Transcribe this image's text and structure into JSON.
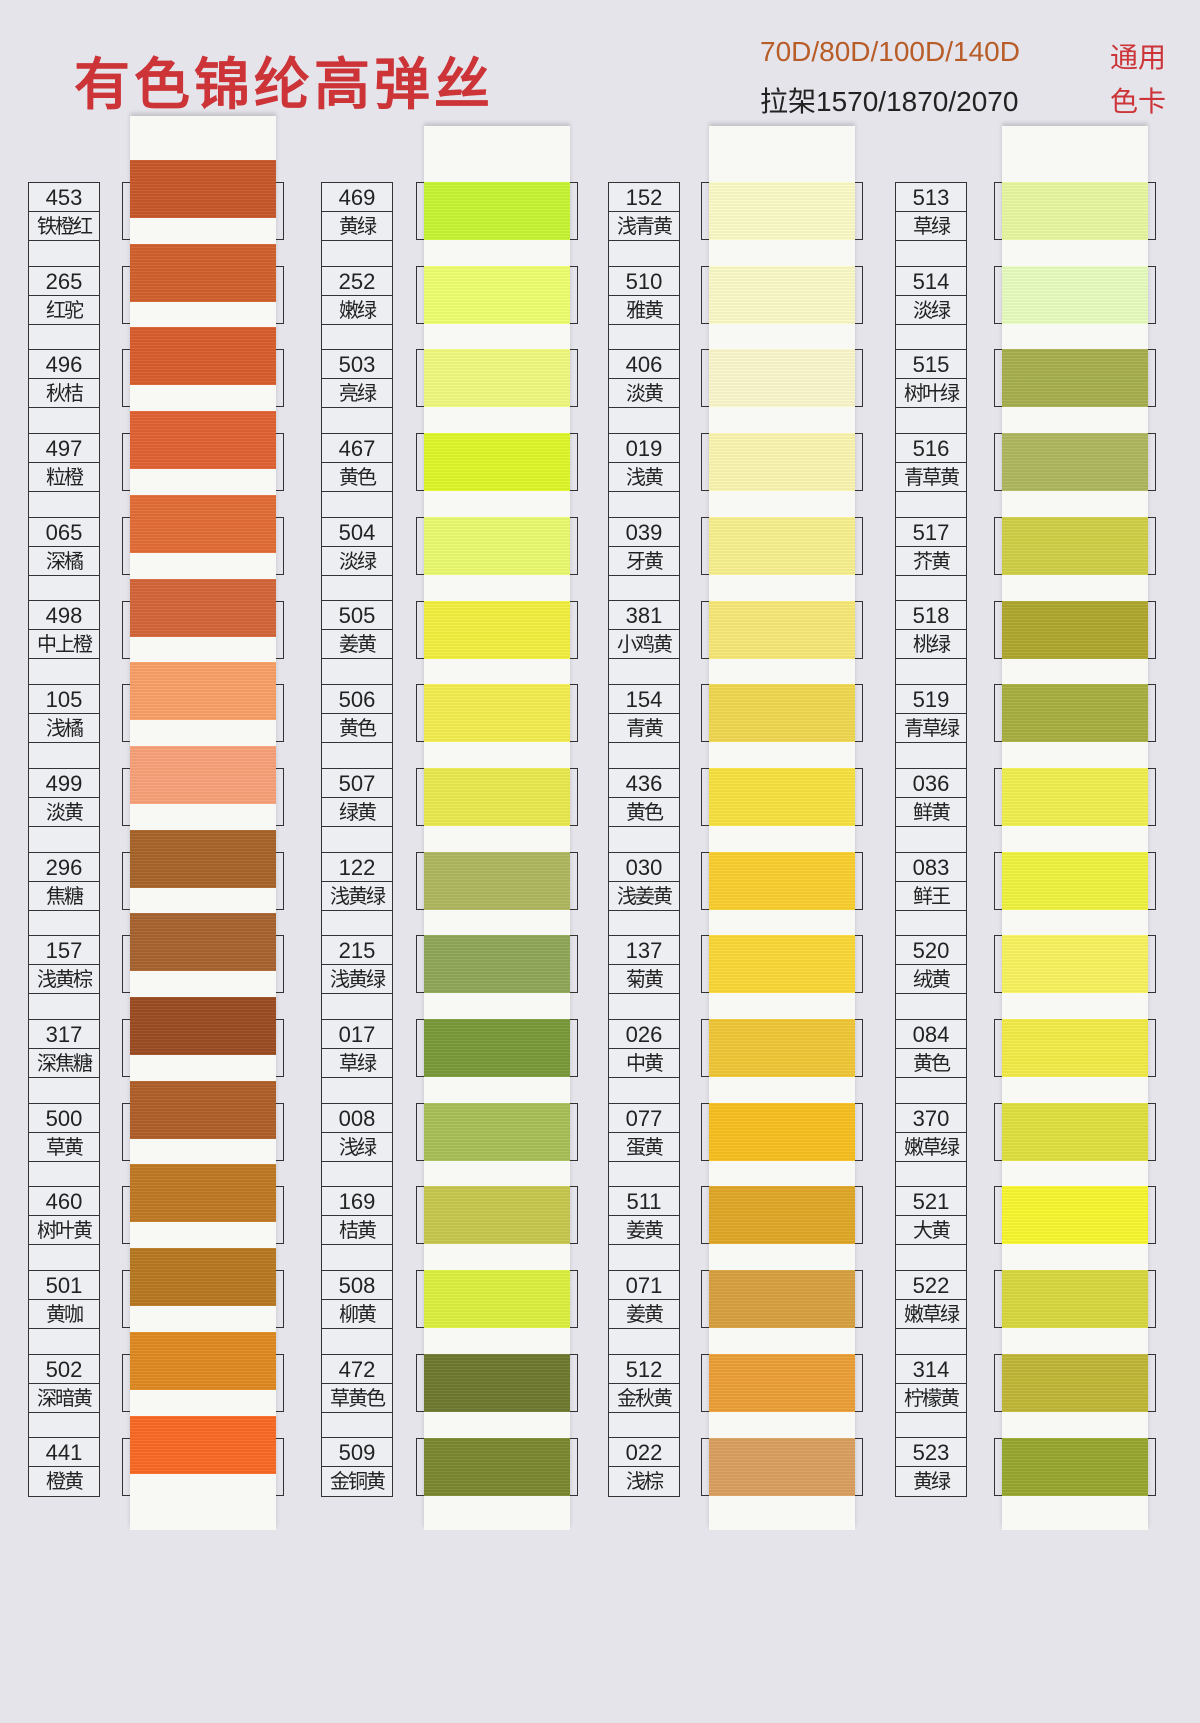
{
  "header": {
    "title": "有色锦纶高弹丝",
    "spec_line1": "70D/80D/100D/140D",
    "spec_line2": "拉架1570/1870/2070",
    "tag_line1": "通用",
    "tag_line2": "色卡"
  },
  "columns": [
    {
      "items": [
        {
          "code": "453",
          "name": "铁橙红",
          "color": "#c9582c"
        },
        {
          "code": "265",
          "name": "红驼",
          "color": "#d2612e"
        },
        {
          "code": "496",
          "name": "秋桔",
          "color": "#d95e2e"
        },
        {
          "code": "497",
          "name": "粒橙",
          "color": "#e06334"
        },
        {
          "code": "065",
          "name": "深橘",
          "color": "#e36d38"
        },
        {
          "code": "498",
          "name": "中上橙",
          "color": "#d4663a"
        },
        {
          "code": "105",
          "name": "浅橘",
          "color": "#f9a068"
        },
        {
          "code": "499",
          "name": "淡黄",
          "color": "#f9a27a"
        },
        {
          "code": "296",
          "name": "焦糖",
          "color": "#a8652a"
        },
        {
          "code": "157",
          "name": "浅黄棕",
          "color": "#a86430"
        },
        {
          "code": "317",
          "name": "深焦糖",
          "color": "#9c4d22"
        },
        {
          "code": "500",
          "name": "草黄",
          "color": "#b0602a"
        },
        {
          "code": "460",
          "name": "树叶黄",
          "color": "#c07a24"
        },
        {
          "code": "501",
          "name": "黄咖",
          "color": "#b87a22"
        },
        {
          "code": "502",
          "name": "深暗黄",
          "color": "#e08a22"
        },
        {
          "code": "441",
          "name": "橙黄",
          "color": "#fa6a26"
        }
      ]
    },
    {
      "items": [
        {
          "code": "469",
          "name": "黄绿",
          "color": "#c8f534"
        },
        {
          "code": "252",
          "name": "嫩绿",
          "color": "#eeff70"
        },
        {
          "code": "503",
          "name": "亮绿",
          "color": "#f0fa80"
        },
        {
          "code": "467",
          "name": "黄色",
          "color": "#def82a"
        },
        {
          "code": "504",
          "name": "淡绿",
          "color": "#eafb70"
        },
        {
          "code": "505",
          "name": "姜黄",
          "color": "#f2f040"
        },
        {
          "code": "506",
          "name": "黄色",
          "color": "#f4ee50"
        },
        {
          "code": "507",
          "name": "绿黄",
          "color": "#eaea50"
        },
        {
          "code": "122",
          "name": "浅黄绿",
          "color": "#b0b860"
        },
        {
          "code": "215",
          "name": "浅黄绿",
          "color": "#90a858"
        },
        {
          "code": "017",
          "name": "草绿",
          "color": "#7a9a3a"
        },
        {
          "code": "008",
          "name": "浅绿",
          "color": "#a8c058"
        },
        {
          "code": "169",
          "name": "桔黄",
          "color": "#c8c850"
        },
        {
          "code": "508",
          "name": "柳黄",
          "color": "#ddf040"
        },
        {
          "code": "472",
          "name": "草黄色",
          "color": "#6f7a30"
        },
        {
          "code": "509",
          "name": "金铜黄",
          "color": "#7c8830"
        }
      ]
    },
    {
      "items": [
        {
          "code": "152",
          "name": "浅青黄",
          "color": "#fbfbc8"
        },
        {
          "code": "510",
          "name": "雅黄",
          "color": "#fbfac8"
        },
        {
          "code": "406",
          "name": "淡黄",
          "color": "#fbf7cc"
        },
        {
          "code": "019",
          "name": "浅黄",
          "color": "#fbf5b0"
        },
        {
          "code": "039",
          "name": "牙黄",
          "color": "#f8f090"
        },
        {
          "code": "381",
          "name": "小鸡黄",
          "color": "#f8e878"
        },
        {
          "code": "154",
          "name": "青黄",
          "color": "#f0d850"
        },
        {
          "code": "436",
          "name": "黄色",
          "color": "#f8e240"
        },
        {
          "code": "030",
          "name": "浅姜黄",
          "color": "#fad030"
        },
        {
          "code": "137",
          "name": "菊黄",
          "color": "#fbd838"
        },
        {
          "code": "026",
          "name": "中黄",
          "color": "#f0c838"
        },
        {
          "code": "077",
          "name": "蛋黄",
          "color": "#f8c020"
        },
        {
          "code": "511",
          "name": "姜黄",
          "color": "#e0a828"
        },
        {
          "code": "071",
          "name": "姜黄",
          "color": "#d8a040"
        },
        {
          "code": "512",
          "name": "金秋黄",
          "color": "#eca038"
        },
        {
          "code": "022",
          "name": "浅棕",
          "color": "#daa060"
        }
      ]
    },
    {
      "items": [
        {
          "code": "513",
          "name": "草绿",
          "color": "#e8f8a0"
        },
        {
          "code": "514",
          "name": "淡绿",
          "color": "#e8fcc0"
        },
        {
          "code": "515",
          "name": "树叶绿",
          "color": "#a8b050"
        },
        {
          "code": "516",
          "name": "青草黄",
          "color": "#b0b860"
        },
        {
          "code": "517",
          "name": "芥黄",
          "color": "#d0d048"
        },
        {
          "code": "518",
          "name": "桃绿",
          "color": "#b0a830"
        },
        {
          "code": "519",
          "name": "青草绿",
          "color": "#a8b040"
        },
        {
          "code": "036",
          "name": "鲜黄",
          "color": "#f0f050"
        },
        {
          "code": "083",
          "name": "鲜王",
          "color": "#f0f440"
        },
        {
          "code": "520",
          "name": "绒黄",
          "color": "#f8f460"
        },
        {
          "code": "084",
          "name": "黄色",
          "color": "#f4ec48"
        },
        {
          "code": "370",
          "name": "嫩草绿",
          "color": "#e0e040"
        },
        {
          "code": "521",
          "name": "大黄",
          "color": "#f8f830"
        },
        {
          "code": "522",
          "name": "嫩草绿",
          "color": "#d8d840"
        },
        {
          "code": "314",
          "name": "柠檬黄",
          "color": "#c0b838"
        },
        {
          "code": "523",
          "name": "黄绿",
          "color": "#98a830"
        }
      ]
    }
  ]
}
